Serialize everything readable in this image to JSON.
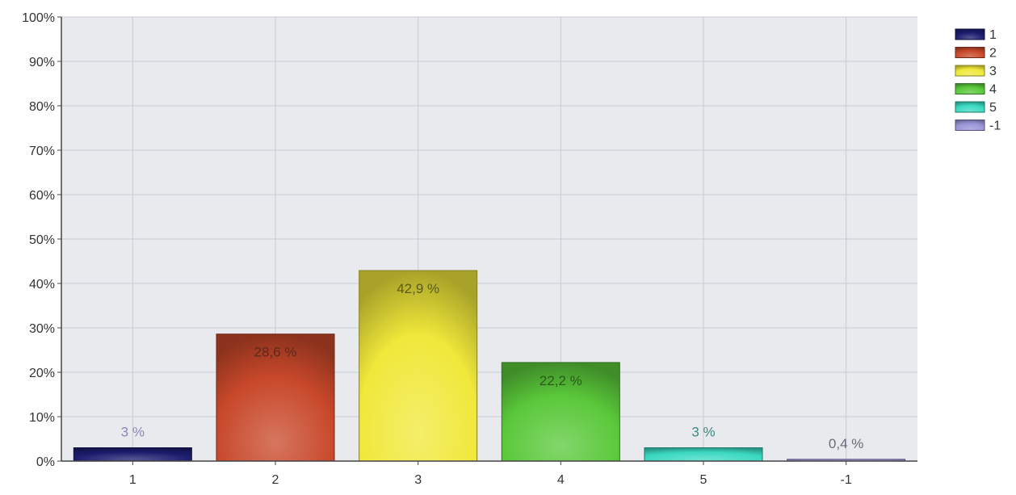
{
  "chart_data": {
    "type": "bar",
    "categories": [
      "1",
      "2",
      "3",
      "4",
      "5",
      "-1"
    ],
    "values": [
      3,
      28.6,
      42.9,
      22.2,
      3,
      0.4
    ],
    "value_labels": [
      "3 %",
      "28,6 %",
      "42,9 %",
      "22,2 %",
      "3 %",
      "0,4 %"
    ],
    "y_ticks": [
      "0%",
      "10%",
      "20%",
      "30%",
      "40%",
      "50%",
      "60%",
      "70%",
      "80%",
      "90%",
      "100%"
    ],
    "ylim": [
      0,
      100
    ],
    "grid": true,
    "legend": {
      "position": "top-right",
      "entries": [
        "1",
        "2",
        "3",
        "4",
        "5",
        "-1"
      ]
    },
    "colors": [
      "#1c1c6e",
      "#c8482a",
      "#f0e83a",
      "#5ac83a",
      "#3ad8c0",
      "#9a94d8"
    ],
    "label_colors": [
      "#8a88b8",
      "#5a2a1a",
      "#5a5a1a",
      "#2a5a1a",
      "#3a8a80",
      "#6a6a7a"
    ],
    "plot_background": "#e8eaee",
    "title": "",
    "xlabel": "",
    "ylabel": ""
  }
}
